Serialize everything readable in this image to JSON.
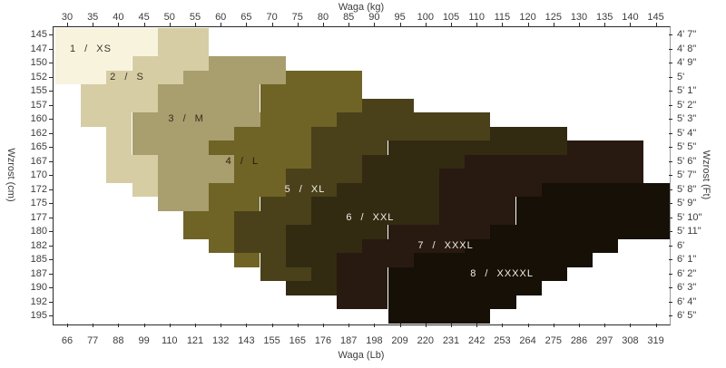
{
  "titles": {
    "top": "Waga  (kg)",
    "bottom": "Waga  (Lb)",
    "left": "Wzrost  (cm)",
    "right": "Wzrost  (Ft)"
  },
  "chart_data": {
    "type": "heatmap",
    "description": "Clothing size chart: weight (kg top axis / lb bottom axis) vs height (cm left axis / ft right axis). Stepped diagonal regions mark sizes 1/XS through 8/XXXXL.",
    "x_top_ticks_kg": [
      30,
      35,
      40,
      45,
      50,
      55,
      60,
      65,
      70,
      75,
      80,
      85,
      90,
      95,
      100,
      105,
      110,
      115,
      120,
      125,
      130,
      135,
      140,
      145
    ],
    "x_bottom_ticks_lb": [
      66,
      77,
      88,
      99,
      110,
      121,
      132,
      143,
      155,
      165,
      176,
      187,
      198,
      209,
      220,
      231,
      242,
      253,
      264,
      275,
      286,
      297,
      308,
      319
    ],
    "grid": {
      "kg_min": 30,
      "kg_step": 5,
      "cell_kg": 5,
      "cell_cm": 2.5
    },
    "sizes": [
      {
        "id": "XS",
        "label": "1 / XS",
        "color": "#f8f3dd",
        "label_color": "#3a3526",
        "label_cm": 147,
        "label_ci": 1.42
      },
      {
        "id": "S",
        "label": "2 / S",
        "color": "#d6cda4",
        "label_color": "#3a3526",
        "label_cm": 152,
        "label_ci": 2.84
      },
      {
        "id": "M",
        "label": "3 / M",
        "color": "#a89e6e",
        "label_color": "#332e1a",
        "label_cm": 160,
        "label_ci": 5.15
      },
      {
        "id": "L",
        "label": "4 / L",
        "color": "#6f6425",
        "label_color": "#251f07",
        "label_cm": 167,
        "label_ci": 7.34
      },
      {
        "id": "XL",
        "label": "5 / XL",
        "color": "#4a411b",
        "label_color": "#f2efe6",
        "label_cm": 172,
        "label_ci": 9.79
      },
      {
        "id": "XXL",
        "label": "6 / XXL",
        "color": "#322b12",
        "label_color": "#f2efe6",
        "label_cm": 177,
        "label_ci": 12.34
      },
      {
        "id": "XXXL",
        "label": "7 / XXXL",
        "color": "#281a10",
        "label_color": "#f2efe6",
        "label_cm": 182,
        "label_ci": 15.29
      },
      {
        "id": "XXXXL",
        "label": "8 / XXXXL",
        "color": "#161007",
        "label_color": "#f2efe6",
        "label_cm": 187,
        "label_ci": 17.49
      }
    ],
    "rows": [
      {
        "cm": "145",
        "ft": "4' 7\"",
        "segments": [
          {
            "size": "XS",
            "from": 30,
            "to": 45
          },
          {
            "size": "S",
            "from": 50,
            "to": 55
          }
        ]
      },
      {
        "cm": "147",
        "ft": "4' 8\"",
        "segments": [
          {
            "size": "XS",
            "from": 30,
            "to": 45
          },
          {
            "size": "S",
            "from": 50,
            "to": 55
          }
        ]
      },
      {
        "cm": "150",
        "ft": "4' 9\"",
        "segments": [
          {
            "size": "XS",
            "from": 30,
            "to": 40
          },
          {
            "size": "S",
            "from": 45,
            "to": 55
          },
          {
            "size": "M",
            "from": 60,
            "to": 70
          }
        ]
      },
      {
        "cm": "152",
        "ft": "5'",
        "segments": [
          {
            "size": "XS",
            "from": 30,
            "to": 35
          },
          {
            "size": "S",
            "from": 40,
            "to": 50
          },
          {
            "size": "M",
            "from": 55,
            "to": 70
          },
          {
            "size": "L",
            "from": 75,
            "to": 85
          }
        ]
      },
      {
        "cm": "155",
        "ft": "5' 1\"",
        "segments": [
          {
            "size": "S",
            "from": 35,
            "to": 45
          },
          {
            "size": "M",
            "from": 50,
            "to": 65
          },
          {
            "size": "L",
            "from": 70,
            "to": 85
          }
        ]
      },
      {
        "cm": "157",
        "ft": "5' 2\"",
        "segments": [
          {
            "size": "S",
            "from": 35,
            "to": 45
          },
          {
            "size": "M",
            "from": 50,
            "to": 65
          },
          {
            "size": "L",
            "from": 70,
            "to": 85
          },
          {
            "size": "XL",
            "from": 90,
            "to": 95
          }
        ]
      },
      {
        "cm": "160",
        "ft": "5' 3\"",
        "segments": [
          {
            "size": "S",
            "from": 35,
            "to": 40
          },
          {
            "size": "M",
            "from": 45,
            "to": 65
          },
          {
            "size": "L",
            "from": 70,
            "to": 80
          },
          {
            "size": "XL",
            "from": 85,
            "to": 110
          }
        ]
      },
      {
        "cm": "162",
        "ft": "5' 4\"",
        "segments": [
          {
            "size": "S",
            "from": 40,
            "to": 40
          },
          {
            "size": "M",
            "from": 45,
            "to": 60
          },
          {
            "size": "L",
            "from": 65,
            "to": 75
          },
          {
            "size": "XL",
            "from": 80,
            "to": 110
          },
          {
            "size": "XXL",
            "from": 115,
            "to": 125
          }
        ]
      },
      {
        "cm": "165",
        "ft": "5' 5\"",
        "segments": [
          {
            "size": "S",
            "from": 40,
            "to": 40
          },
          {
            "size": "M",
            "from": 45,
            "to": 55
          },
          {
            "size": "L",
            "from": 60,
            "to": 75
          },
          {
            "size": "XL",
            "from": 80,
            "to": 90
          },
          {
            "size": "XXL",
            "from": 95,
            "to": 125
          },
          {
            "size": "XXXL",
            "from": 130,
            "to": 140
          }
        ]
      },
      {
        "cm": "167",
        "ft": "5' 6\"",
        "segments": [
          {
            "size": "S",
            "from": 40,
            "to": 45
          },
          {
            "size": "M",
            "from": 50,
            "to": 60
          },
          {
            "size": "L",
            "from": 65,
            "to": 75
          },
          {
            "size": "XL",
            "from": 80,
            "to": 85
          },
          {
            "size": "XXL",
            "from": 90,
            "to": 105
          },
          {
            "size": "XXXL",
            "from": 110,
            "to": 140
          }
        ]
      },
      {
        "cm": "170",
        "ft": "5' 7\"",
        "segments": [
          {
            "size": "S",
            "from": 40,
            "to": 45
          },
          {
            "size": "M",
            "from": 50,
            "to": 60
          },
          {
            "size": "L",
            "from": 65,
            "to": 70
          },
          {
            "size": "XL",
            "from": 75,
            "to": 85
          },
          {
            "size": "XXL",
            "from": 90,
            "to": 100
          },
          {
            "size": "XXXL",
            "from": 105,
            "to": 140
          }
        ]
      },
      {
        "cm": "172",
        "ft": "5' 8\"",
        "segments": [
          {
            "size": "S",
            "from": 45,
            "to": 45
          },
          {
            "size": "M",
            "from": 50,
            "to": 55
          },
          {
            "size": "L",
            "from": 60,
            "to": 70
          },
          {
            "size": "XL",
            "from": 75,
            "to": 80
          },
          {
            "size": "XXL",
            "from": 85,
            "to": 100
          },
          {
            "size": "XXXL",
            "from": 105,
            "to": 120
          },
          {
            "size": "XXXXL",
            "from": 125,
            "to": 145
          }
        ]
      },
      {
        "cm": "175",
        "ft": "5' 9\"",
        "segments": [
          {
            "size": "M",
            "from": 50,
            "to": 55
          },
          {
            "size": "L",
            "from": 60,
            "to": 65
          },
          {
            "size": "XL",
            "from": 70,
            "to": 75
          },
          {
            "size": "XXL",
            "from": 80,
            "to": 100
          },
          {
            "size": "XXXL",
            "from": 105,
            "to": 115
          },
          {
            "size": "XXXXL",
            "from": 120,
            "to": 145
          }
        ]
      },
      {
        "cm": "177",
        "ft": "5' 10\"",
        "segments": [
          {
            "size": "L",
            "from": 55,
            "to": 60
          },
          {
            "size": "XL",
            "from": 65,
            "to": 75
          },
          {
            "size": "XXL",
            "from": 80,
            "to": 100
          },
          {
            "size": "XXXL",
            "from": 105,
            "to": 115
          },
          {
            "size": "XXXXL",
            "from": 120,
            "to": 145
          }
        ]
      },
      {
        "cm": "180",
        "ft": "5' 11\"",
        "segments": [
          {
            "size": "L",
            "from": 55,
            "to": 60
          },
          {
            "size": "XL",
            "from": 65,
            "to": 70
          },
          {
            "size": "XXL",
            "from": 75,
            "to": 90
          },
          {
            "size": "XXXL",
            "from": 95,
            "to": 110
          },
          {
            "size": "XXXXL",
            "from": 115,
            "to": 145
          }
        ]
      },
      {
        "cm": "182",
        "ft": "6'",
        "segments": [
          {
            "size": "L",
            "from": 60,
            "to": 60
          },
          {
            "size": "XL",
            "from": 65,
            "to": 70
          },
          {
            "size": "XXL",
            "from": 75,
            "to": 85
          },
          {
            "size": "XXXL",
            "from": 90,
            "to": 105
          },
          {
            "size": "XXXXL",
            "from": 110,
            "to": 135
          }
        ]
      },
      {
        "cm": "185",
        "ft": "6' 1\"",
        "segments": [
          {
            "size": "L",
            "from": 65,
            "to": 65
          },
          {
            "size": "XL",
            "from": 70,
            "to": 70
          },
          {
            "size": "XXL",
            "from": 75,
            "to": 80
          },
          {
            "size": "XXXL",
            "from": 85,
            "to": 95
          },
          {
            "size": "XXXXL",
            "from": 100,
            "to": 130
          }
        ]
      },
      {
        "cm": "187",
        "ft": "6' 2\"",
        "segments": [
          {
            "size": "XL",
            "from": 70,
            "to": 75
          },
          {
            "size": "XXL",
            "from": 80,
            "to": 80
          },
          {
            "size": "XXXL",
            "from": 85,
            "to": 90
          },
          {
            "size": "XXXXL",
            "from": 95,
            "to": 125
          }
        ]
      },
      {
        "cm": "190",
        "ft": "6' 3\"",
        "segments": [
          {
            "size": "XXL",
            "from": 75,
            "to": 80
          },
          {
            "size": "XXXL",
            "from": 85,
            "to": 90
          },
          {
            "size": "XXXXL",
            "from": 95,
            "to": 120
          }
        ]
      },
      {
        "cm": "192",
        "ft": "6' 4\"",
        "segments": [
          {
            "size": "XXXL",
            "from": 85,
            "to": 90
          },
          {
            "size": "XXXXL",
            "from": 95,
            "to": 115
          }
        ]
      },
      {
        "cm": "195",
        "ft": "6' 5\"",
        "segments": [
          {
            "size": "XXXXL",
            "from": 95,
            "to": 110
          }
        ]
      }
    ]
  }
}
